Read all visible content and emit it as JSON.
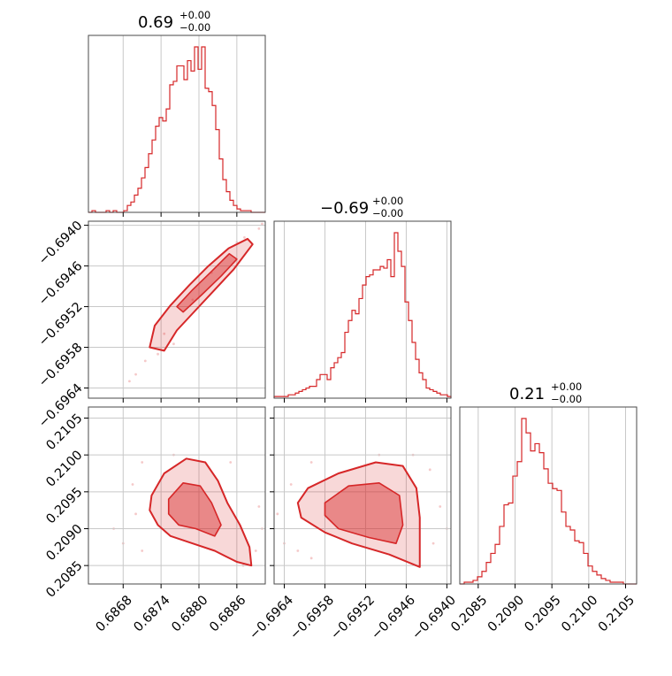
{
  "chart_data": {
    "type": "corner",
    "color": "#d62728",
    "grid": true,
    "titles": [
      {
        "value": "0.69",
        "plus": "+0.00",
        "minus": "−0.00"
      },
      {
        "value": "−0.69",
        "plus": "+0.00",
        "minus": "−0.00"
      },
      {
        "value": "0.21",
        "plus": "+0.00",
        "minus": "−0.00"
      }
    ],
    "parameters": [
      {
        "range": [
          0.68625,
          0.68905
        ],
        "ticks": [
          0.6868,
          0.6874,
          0.688,
          0.6886
        ],
        "tick_labels": [
          "0.6868",
          "0.6874",
          "0.6880",
          "0.6886"
        ],
        "hist_bins": [
          0.0,
          0.01,
          0.0,
          0.0,
          0.0,
          0.01,
          0.0,
          0.01,
          0.0,
          0.0,
          0.01,
          0.04,
          0.06,
          0.1,
          0.14,
          0.2,
          0.26,
          0.34,
          0.42,
          0.5,
          0.55,
          0.53,
          0.6,
          0.74,
          0.76,
          0.85,
          0.85,
          0.77,
          0.88,
          0.82,
          0.96,
          0.83,
          0.96,
          0.72,
          0.7,
          0.62,
          0.48,
          0.31,
          0.19,
          0.12,
          0.07,
          0.04,
          0.02,
          0.01,
          0.01,
          0.01,
          0.0,
          0.0,
          0.0,
          0.0
        ]
      },
      {
        "range": [
          -0.69655,
          -0.69394
        ],
        "ticks": [
          -0.6964,
          -0.6958,
          -0.6952,
          -0.6946,
          -0.694
        ],
        "tick_labels": [
          "−0.6964",
          "−0.6958",
          "−0.6952",
          "−0.6946",
          "−0.6940"
        ],
        "hist_bins": [
          0.01,
          0.01,
          0.01,
          0.01,
          0.02,
          0.02,
          0.03,
          0.04,
          0.05,
          0.06,
          0.07,
          0.07,
          0.11,
          0.14,
          0.14,
          0.11,
          0.18,
          0.21,
          0.24,
          0.27,
          0.39,
          0.46,
          0.52,
          0.5,
          0.59,
          0.67,
          0.72,
          0.73,
          0.76,
          0.76,
          0.78,
          0.77,
          0.82,
          0.72,
          0.98,
          0.87,
          0.78,
          0.57,
          0.46,
          0.33,
          0.23,
          0.15,
          0.11,
          0.06,
          0.05,
          0.04,
          0.03,
          0.02,
          0.02,
          0.01
        ]
      },
      {
        "range": [
          0.20825,
          0.21065
        ],
        "ticks": [
          0.2085,
          0.209,
          0.2095,
          0.21,
          0.2105
        ],
        "tick_labels": [
          "0.2085",
          "0.2090",
          "0.2095",
          "0.2100",
          "0.2105"
        ],
        "hist_bins": [
          0.0,
          0.01,
          0.01,
          0.02,
          0.04,
          0.07,
          0.12,
          0.17,
          0.22,
          0.32,
          0.44,
          0.45,
          0.6,
          0.68,
          0.92,
          0.84,
          0.74,
          0.78,
          0.73,
          0.64,
          0.56,
          0.53,
          0.52,
          0.4,
          0.32,
          0.3,
          0.24,
          0.23,
          0.17,
          0.1,
          0.07,
          0.05,
          0.03,
          0.02,
          0.01,
          0.01,
          0.01,
          0.0,
          0.0,
          0.0
        ]
      }
    ],
    "contours": [
      {
        "x_param": 0,
        "y_param": 1,
        "regions": [
          {
            "level": "outer",
            "points": [
              [
                0.68745,
                -0.69585
              ],
              [
                0.68765,
                -0.69555
              ],
              [
                0.68795,
                -0.69525
              ],
              [
                0.68825,
                -0.69495
              ],
              [
                0.68855,
                -0.69465
              ],
              [
                0.68885,
                -0.69428
              ],
              [
                0.68877,
                -0.6942
              ],
              [
                0.68847,
                -0.69434
              ],
              [
                0.68815,
                -0.6946
              ],
              [
                0.68785,
                -0.69488
              ],
              [
                0.68755,
                -0.69518
              ],
              [
                0.6873,
                -0.69548
              ],
              [
                0.68722,
                -0.6958
              ]
            ]
          },
          {
            "level": "inner",
            "points": [
              [
                0.68775,
                -0.69528
              ],
              [
                0.68805,
                -0.69502
              ],
              [
                0.68835,
                -0.69475
              ],
              [
                0.6886,
                -0.6945
              ],
              [
                0.68848,
                -0.69442
              ],
              [
                0.6882,
                -0.69468
              ],
              [
                0.6879,
                -0.69495
              ],
              [
                0.68765,
                -0.6952
              ]
            ]
          }
        ]
      },
      {
        "x_param": 0,
        "y_param": 2,
        "regions": [
          {
            "level": "outer",
            "points": [
              [
                0.68725,
                0.20945
              ],
              [
                0.68745,
                0.20975
              ],
              [
                0.6878,
                0.20995
              ],
              [
                0.6881,
                0.2099
              ],
              [
                0.6883,
                0.20965
              ],
              [
                0.68845,
                0.20935
              ],
              [
                0.68865,
                0.20905
              ],
              [
                0.6888,
                0.20875
              ],
              [
                0.68883,
                0.2085
              ],
              [
                0.6886,
                0.20855
              ],
              [
                0.68825,
                0.2087
              ],
              [
                0.6879,
                0.2088
              ],
              [
                0.68755,
                0.2089
              ],
              [
                0.68735,
                0.20905
              ],
              [
                0.68722,
                0.20925
              ]
            ]
          },
          {
            "level": "inner",
            "points": [
              [
                0.68752,
                0.2094
              ],
              [
                0.68775,
                0.20962
              ],
              [
                0.68802,
                0.20958
              ],
              [
                0.6882,
                0.20935
              ],
              [
                0.68835,
                0.20905
              ],
              [
                0.68825,
                0.2089
              ],
              [
                0.68795,
                0.209
              ],
              [
                0.68768,
                0.20905
              ],
              [
                0.68752,
                0.2092
              ]
            ]
          }
        ]
      },
      {
        "x_param": 1,
        "y_param": 2,
        "regions": [
          {
            "level": "outer",
            "points": [
              [
                -0.6962,
                0.20935
              ],
              [
                -0.69605,
                0.20955
              ],
              [
                -0.6956,
                0.20975
              ],
              [
                -0.69505,
                0.2099
              ],
              [
                -0.69465,
                0.20985
              ],
              [
                -0.69445,
                0.20955
              ],
              [
                -0.6944,
                0.20915
              ],
              [
                -0.6944,
                0.20875
              ],
              [
                -0.6944,
                0.20848
              ],
              [
                -0.69485,
                0.20865
              ],
              [
                -0.6954,
                0.2088
              ],
              [
                -0.6958,
                0.20895
              ],
              [
                -0.69615,
                0.20915
              ]
            ]
          },
          {
            "level": "inner",
            "points": [
              [
                -0.6958,
                0.20935
              ],
              [
                -0.69545,
                0.20958
              ],
              [
                -0.695,
                0.20962
              ],
              [
                -0.6947,
                0.20945
              ],
              [
                -0.69465,
                0.20905
              ],
              [
                -0.69475,
                0.2088
              ],
              [
                -0.69515,
                0.20888
              ],
              [
                -0.6956,
                0.209
              ],
              [
                -0.6958,
                0.20918
              ]
            ]
          }
        ]
      }
    ],
    "scatter_spread": [
      {
        "x_param": 0,
        "y_param": 1,
        "points": [
          [
            0.687,
            -0.6962
          ],
          [
            0.68715,
            -0.696
          ],
          [
            0.6869,
            -0.6963
          ],
          [
            0.68735,
            -0.6959
          ],
          [
            0.6876,
            -0.69575
          ],
          [
            0.68872,
            -0.69418
          ],
          [
            0.68895,
            -0.69405
          ],
          [
            0.689,
            -0.69398
          ],
          [
            0.6886,
            -0.69425
          ],
          [
            0.6882,
            -0.6947
          ],
          [
            0.6879,
            -0.6951
          ],
          [
            0.68745,
            -0.6956
          ]
        ]
      },
      {
        "x_param": 0,
        "y_param": 2,
        "points": [
          [
            0.68665,
            0.209
          ],
          [
            0.6868,
            0.2088
          ],
          [
            0.68695,
            0.2096
          ],
          [
            0.687,
            0.2092
          ],
          [
            0.6871,
            0.2087
          ],
          [
            0.6889,
            0.2087
          ],
          [
            0.68895,
            0.2093
          ],
          [
            0.689,
            0.209
          ],
          [
            0.6885,
            0.2099
          ],
          [
            0.6876,
            0.21
          ],
          [
            0.6887,
            0.2085
          ],
          [
            0.6871,
            0.2099
          ]
        ]
      },
      {
        "x_param": 1,
        "y_param": 2,
        "points": [
          [
            -0.6965,
            0.2092
          ],
          [
            -0.6964,
            0.2088
          ],
          [
            -0.6963,
            0.2096
          ],
          [
            -0.696,
            0.2099
          ],
          [
            -0.6962,
            0.2087
          ],
          [
            -0.6942,
            0.2088
          ],
          [
            -0.6941,
            0.2093
          ],
          [
            -0.69425,
            0.2098
          ],
          [
            -0.6945,
            0.21
          ],
          [
            -0.696,
            0.2086
          ],
          [
            -0.694,
            0.209
          ],
          [
            -0.695,
            0.21
          ]
        ]
      }
    ]
  }
}
